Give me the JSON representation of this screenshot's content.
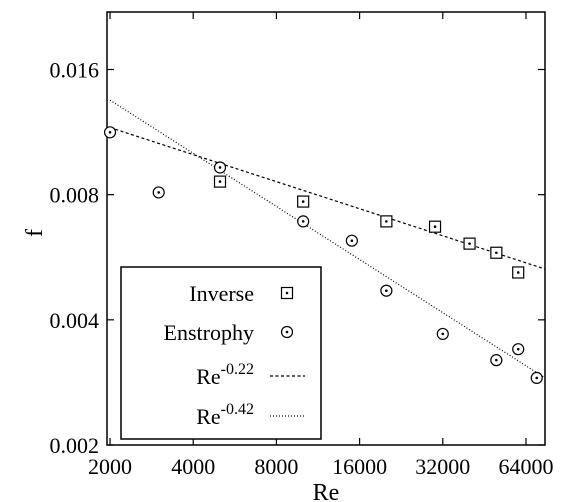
{
  "chart_data": {
    "type": "scatter",
    "xlabel": "Re",
    "ylabel": "f",
    "x_scale": "log",
    "y_scale": "log",
    "xlim": [
      1950,
      75000
    ],
    "ylim": [
      0.002,
      0.022
    ],
    "x_ticks": [
      {
        "value": 2000,
        "label": "2000"
      },
      {
        "value": 4000,
        "label": "4000"
      },
      {
        "value": 8000,
        "label": "8000"
      },
      {
        "value": 16000,
        "label": "16000"
      },
      {
        "value": 32000,
        "label": "32000"
      },
      {
        "value": 64000,
        "label": "64000"
      }
    ],
    "y_ticks": [
      {
        "value": 0.002,
        "label": "0.002"
      },
      {
        "value": 0.004,
        "label": "0.004"
      },
      {
        "value": 0.008,
        "label": "0.008"
      },
      {
        "value": 0.016,
        "label": "0.016"
      }
    ],
    "grid": false,
    "legend_position": "bottom-left",
    "series": [
      {
        "name": "Inverse",
        "marker": "dotted-square",
        "x": [
          5000,
          10000,
          20000,
          30000,
          40000,
          50000,
          60000
        ],
        "y": [
          0.0086,
          0.0077,
          0.0069,
          0.0067,
          0.0061,
          0.0058,
          0.0052
        ]
      },
      {
        "name": "Enstrophy",
        "marker": "dotted-circle",
        "x": [
          2000,
          3000,
          5000,
          10000,
          15000,
          20000,
          32000,
          50000,
          60000,
          70000
        ],
        "y": [
          0.0113,
          0.0081,
          0.0093,
          0.0069,
          0.0062,
          0.0047,
          0.0037,
          0.0032,
          0.0034,
          0.0029
        ]
      },
      {
        "name_base": "Re",
        "name_exponent": "-0.22",
        "style": "dashed",
        "x": [
          2000,
          75000
        ],
        "y": [
          0.0116,
          0.0053
        ]
      },
      {
        "name_base": "Re",
        "name_exponent": "-0.42",
        "style": "dotted",
        "x": [
          2000,
          75000
        ],
        "y": [
          0.0135,
          0.0029
        ]
      }
    ]
  }
}
